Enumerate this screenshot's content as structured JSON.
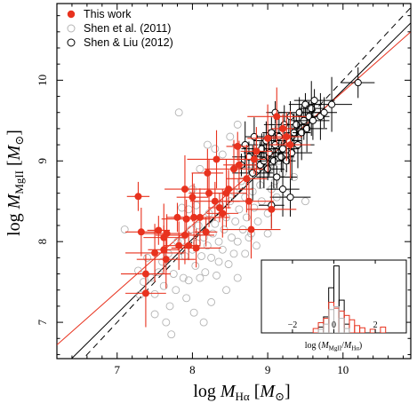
{
  "chart_data": [
    {
      "type": "scatter",
      "title": "",
      "xlabel": "log M_Hα [M_⊙]",
      "ylabel": "log M_MgII [M_⊙]",
      "xlabel_parts": {
        "prefix": "log ",
        "symbol": "M",
        "sub": "Hα",
        "unit_open": "[",
        "unit_symbol": "M",
        "unit_sub": "⊙",
        "unit_close": "]"
      },
      "ylabel_parts": {
        "prefix": "log ",
        "symbol": "M",
        "sub": "MgII",
        "unit_open": "[",
        "unit_symbol": "M",
        "unit_sub": "⊙",
        "unit_close": "]"
      },
      "xlim": [
        6.2,
        10.9
      ],
      "ylim": [
        6.55,
        10.95
      ],
      "xticks": [
        7,
        8,
        9,
        10
      ],
      "yticks": [
        7,
        8,
        9,
        10
      ],
      "legend_placement": "top-left",
      "colors": {
        "this_work": "#e8321e",
        "shen2011": "#b4b4b4",
        "shenliu2012": "#000000",
        "one_to_one": "#000000"
      },
      "series": [
        {
          "name": "This work",
          "marker": "filled-circle",
          "points": [
            [
              7.28,
              8.56
            ],
            [
              7.32,
              8.12
            ],
            [
              7.38,
              7.36
            ],
            [
              7.38,
              7.6
            ],
            [
              7.5,
              7.86
            ],
            [
              7.55,
              8.14
            ],
            [
              7.62,
              7.9
            ],
            [
              7.62,
              8.05
            ],
            [
              7.66,
              8.1
            ],
            [
              7.65,
              7.78
            ],
            [
              7.8,
              8.3
            ],
            [
              7.82,
              7.95
            ],
            [
              7.9,
              8.65
            ],
            [
              7.92,
              8.28
            ],
            [
              7.9,
              8.08
            ],
            [
              7.95,
              7.95
            ],
            [
              8.0,
              8.55
            ],
            [
              8.02,
              8.3
            ],
            [
              8.05,
              7.92
            ],
            [
              8.1,
              8.3
            ],
            [
              8.18,
              8.12
            ],
            [
              8.2,
              8.85
            ],
            [
              8.22,
              8.6
            ],
            [
              8.3,
              8.5
            ],
            [
              8.32,
              9.02
            ],
            [
              8.36,
              8.42
            ],
            [
              8.4,
              8.35
            ],
            [
              8.45,
              8.6
            ],
            [
              8.48,
              8.65
            ],
            [
              8.55,
              8.9
            ],
            [
              8.6,
              9.18
            ],
            [
              8.62,
              8.95
            ],
            [
              8.72,
              8.78
            ],
            [
              8.75,
              8.5
            ],
            [
              8.78,
              8.15
            ],
            [
              8.82,
              9.02
            ],
            [
              8.85,
              9.12
            ],
            [
              9.0,
              9.28
            ],
            [
              9.05,
              8.4
            ],
            [
              9.12,
              9.55
            ],
            [
              9.2,
              9.4
            ],
            [
              9.25,
              9.3
            ],
            [
              9.3,
              9.2
            ]
          ]
        },
        {
          "name": "Shen et al. (2011)",
          "marker": "open-circle",
          "points": [
            [
              7.1,
              8.15
            ],
            [
              7.28,
              7.64
            ],
            [
              7.3,
              7.34
            ],
            [
              7.35,
              7.5
            ],
            [
              7.45,
              7.55
            ],
            [
              7.55,
              7.62
            ],
            [
              7.5,
              7.35
            ],
            [
              7.6,
              7.75
            ],
            [
              7.62,
              7.45
            ],
            [
              7.65,
              7.0
            ],
            [
              7.68,
              7.85
            ],
            [
              7.7,
              7.2
            ],
            [
              7.75,
              7.6
            ],
            [
              7.78,
              7.4
            ],
            [
              7.8,
              8.0
            ],
            [
              7.85,
              8.0
            ],
            [
              7.86,
              8.42
            ],
            [
              7.88,
              7.55
            ],
            [
              7.9,
              7.82
            ],
            [
              7.92,
              7.3
            ],
            [
              7.95,
              7.52
            ],
            [
              7.98,
              8.15
            ],
            [
              8.0,
              7.9
            ],
            [
              8.02,
              7.12
            ],
            [
              8.04,
              7.7
            ],
            [
              8.06,
              7.98
            ],
            [
              8.08,
              8.2
            ],
            [
              8.1,
              7.55
            ],
            [
              8.12,
              7.82
            ],
            [
              8.15,
              8.05
            ],
            [
              8.17,
              7.62
            ],
            [
              8.2,
              7.95
            ],
            [
              8.22,
              8.35
            ],
            [
              8.25,
              7.8
            ],
            [
              8.27,
              8.1
            ],
            [
              8.3,
              8.22
            ],
            [
              8.32,
              7.58
            ],
            [
              8.35,
              8.0
            ],
            [
              8.37,
              8.45
            ],
            [
              8.4,
              7.9
            ],
            [
              8.42,
              8.15
            ],
            [
              8.45,
              8.3
            ],
            [
              8.48,
              7.72
            ],
            [
              8.5,
              8.5
            ],
            [
              8.52,
              8.05
            ],
            [
              8.55,
              8.62
            ],
            [
              8.57,
              8.25
            ],
            [
              8.6,
              8.0
            ],
            [
              8.62,
              8.4
            ],
            [
              8.65,
              8.75
            ],
            [
              8.67,
              8.15
            ],
            [
              8.7,
              8.55
            ],
            [
              8.72,
              8.3
            ],
            [
              8.75,
              8.88
            ],
            [
              8.78,
              8.1
            ],
            [
              8.8,
              8.62
            ],
            [
              8.82,
              8.42
            ],
            [
              8.85,
              8.95
            ],
            [
              8.87,
              8.25
            ],
            [
              8.9,
              8.7
            ],
            [
              8.92,
              8.5
            ],
            [
              8.95,
              9.05
            ],
            [
              8.97,
              8.82
            ],
            [
              9.0,
              8.35
            ],
            [
              9.02,
              8.9
            ],
            [
              9.05,
              8.65
            ],
            [
              9.08,
              9.1
            ],
            [
              9.1,
              8.75
            ],
            [
              9.12,
              8.55
            ],
            [
              9.15,
              9.0
            ],
            [
              9.2,
              8.85
            ],
            [
              9.22,
              9.2
            ],
            [
              9.25,
              8.6
            ],
            [
              9.3,
              9.05
            ],
            [
              9.35,
              8.8
            ],
            [
              9.4,
              9.3
            ],
            [
              9.5,
              8.5
            ],
            [
              8.4,
              9.08
            ],
            [
              8.3,
              9.15
            ],
            [
              8.2,
              9.2
            ],
            [
              8.1,
              8.9
            ],
            [
              8.0,
              8.65
            ],
            [
              7.95,
              8.4
            ],
            [
              8.05,
              8.45
            ],
            [
              8.45,
              7.4
            ],
            [
              8.25,
              7.25
            ],
            [
              8.6,
              7.55
            ],
            [
              8.7,
              7.85
            ],
            [
              8.85,
              7.95
            ],
            [
              9.0,
              8.1
            ],
            [
              8.5,
              9.3
            ],
            [
              8.6,
              9.45
            ],
            [
              7.82,
              9.6
            ],
            [
              8.15,
              7.0
            ],
            [
              7.72,
              6.85
            ],
            [
              7.5,
              7.1
            ],
            [
              8.35,
              7.75
            ],
            [
              8.55,
              7.85
            ],
            [
              8.75,
              8.05
            ],
            [
              7.4,
              7.8
            ]
          ]
        },
        {
          "name": "Shen & Liu (2012)",
          "marker": "open-circle",
          "points": [
            [
              8.65,
              8.95
            ],
            [
              8.7,
              9.2
            ],
            [
              8.75,
              9.05
            ],
            [
              8.8,
              8.85
            ],
            [
              8.82,
              9.3
            ],
            [
              8.85,
              9.1
            ],
            [
              8.9,
              8.95
            ],
            [
              8.92,
              9.15
            ],
            [
              8.95,
              9.0
            ],
            [
              8.98,
              9.25
            ],
            [
              9.0,
              8.9
            ],
            [
              9.02,
              9.1
            ],
            [
              9.05,
              9.35
            ],
            [
              9.08,
              9.0
            ],
            [
              9.1,
              9.2
            ],
            [
              9.12,
              8.8
            ],
            [
              9.15,
              9.3
            ],
            [
              9.18,
              9.05
            ],
            [
              9.2,
              9.15
            ],
            [
              9.22,
              9.45
            ],
            [
              9.25,
              9.0
            ],
            [
              9.28,
              9.25
            ],
            [
              9.3,
              9.55
            ],
            [
              9.32,
              9.1
            ],
            [
              9.35,
              9.35
            ],
            [
              9.38,
              9.45
            ],
            [
              9.4,
              9.2
            ],
            [
              9.42,
              9.6
            ],
            [
              9.45,
              9.35
            ],
            [
              9.48,
              9.5
            ],
            [
              9.5,
              9.7
            ],
            [
              9.52,
              9.4
            ],
            [
              9.55,
              9.55
            ],
            [
              9.58,
              9.65
            ],
            [
              9.6,
              9.5
            ],
            [
              9.62,
              9.75
            ],
            [
              9.7,
              9.55
            ],
            [
              9.75,
              9.6
            ],
            [
              9.2,
              8.65
            ],
            [
              9.3,
              8.55
            ],
            [
              9.1,
              9.6
            ],
            [
              9.05,
              8.45
            ],
            [
              10.2,
              9.97
            ],
            [
              9.85,
              9.7
            ]
          ]
        }
      ],
      "fit_lines": [
        {
          "style": "dashed",
          "color": "#000000",
          "points": [
            [
              6.2,
              6.2
            ],
            [
              10.9,
              10.9
            ]
          ]
        },
        {
          "style": "solid",
          "color": "#000000",
          "points": [
            [
              6.2,
              6.37
            ],
            [
              10.9,
              10.71
            ]
          ]
        },
        {
          "style": "solid",
          "color": "#e8321e",
          "points": [
            [
              6.2,
              6.72
            ],
            [
              10.9,
              10.6
            ]
          ]
        }
      ]
    },
    {
      "type": "histogram",
      "title": "",
      "xlabel": "log (M_MgII/M_Hα)",
      "xlabel_parts": {
        "prefix": "log (",
        "num_symbol": "M",
        "num_sub": "MgII",
        "slash": "/",
        "den_symbol": "M",
        "den_sub": "Hα",
        "suffix": ")"
      },
      "xlim": [
        -3.5,
        3.5
      ],
      "xticks": [
        -2,
        0,
        2
      ],
      "bin_width": 0.25,
      "series": [
        {
          "name": "",
          "color": "#000000",
          "bins": [
            [
              -0.75,
              0.08
            ],
            [
              -0.5,
              0.22
            ],
            [
              -0.25,
              0.62
            ],
            [
              0.0,
              0.92
            ],
            [
              0.25,
              0.45
            ],
            [
              0.5,
              0.12
            ]
          ]
        },
        {
          "name": "",
          "color": "#e8321e",
          "bins": [
            [
              -1.0,
              0.06
            ],
            [
              -0.75,
              0.14
            ],
            [
              -0.5,
              0.2
            ],
            [
              -0.25,
              0.42
            ],
            [
              0.0,
              0.34
            ],
            [
              0.25,
              0.3
            ],
            [
              0.5,
              0.24
            ],
            [
              0.75,
              0.18
            ],
            [
              1.0,
              0.1
            ],
            [
              1.25,
              0.07
            ],
            [
              1.75,
              0.05
            ],
            [
              2.25,
              0.08
            ]
          ]
        },
        {
          "name": "",
          "color": "#b4b4b4",
          "bins": [
            [
              -0.75,
              0.05
            ],
            [
              -0.5,
              0.12
            ],
            [
              -0.25,
              0.32
            ],
            [
              0.0,
              0.36
            ],
            [
              0.25,
              0.2
            ],
            [
              0.5,
              0.06
            ]
          ]
        }
      ]
    }
  ]
}
